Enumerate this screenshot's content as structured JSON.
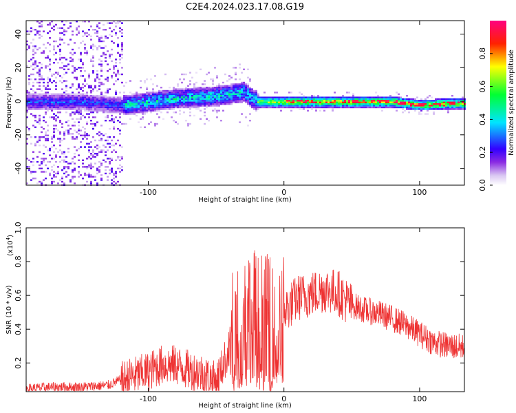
{
  "title": "C2E4.2024.023.17.08.G19",
  "chart_data": [
    {
      "type": "heatmap",
      "xlabel": "Height of straight line (km)",
      "ylabel": "Frequency (Hz)",
      "xlim": [
        -190,
        133
      ],
      "ylim": [
        -50,
        48
      ],
      "xticks": [
        -100,
        0,
        100
      ],
      "yticks": [
        -40,
        -20,
        0,
        20,
        40
      ],
      "colorbar": {
        "label": "Normalized spectral amplitude",
        "range": [
          0,
          1
        ],
        "ticks": [
          0.0,
          0.2,
          0.4,
          0.6,
          0.8
        ],
        "tick_labels": [
          "0.0",
          "0.2",
          "0.4",
          "0.6",
          "0.8"
        ],
        "colormap": [
          "#ffffff",
          "#d9c6f2",
          "#8a2be2",
          "#3300ff",
          "#00e5ff",
          "#00ff33",
          "#ffff00",
          "#ff2200",
          "#ff0080"
        ]
      },
      "ridge": {
        "description_points_x": [
          -190,
          -150,
          -120,
          -100,
          -80,
          -60,
          -45,
          -30,
          -20,
          -10,
          0,
          20,
          40,
          60,
          80,
          100,
          120,
          133
        ],
        "center_freq": [
          0,
          0,
          -2,
          0,
          2,
          3,
          4,
          6,
          0,
          0,
          0,
          0,
          0,
          0,
          0,
          -2,
          -1,
          -1
        ]
      }
    },
    {
      "type": "line",
      "xlabel": "Height of straight line (km)",
      "ylabel": "SNR (10 * v/v)",
      "y_multiplier_label": "(x10",
      "y_multiplier_exp": "4",
      "y_multiplier_close": ")",
      "xlim": [
        -190,
        133
      ],
      "ylim": [
        0.03,
        1.0
      ],
      "xticks": [
        -100,
        0,
        100
      ],
      "yticks": [
        0.2,
        0.4,
        0.6,
        0.8,
        1.0
      ],
      "color": "#ee3333",
      "series": [
        {
          "x": [
            -190,
            -170,
            -150,
            -130,
            -115,
            -100,
            -90,
            -80,
            -70,
            -60,
            -50,
            -40,
            -35,
            -30,
            -25,
            -20,
            -15,
            -10,
            -5,
            0,
            10,
            20,
            30,
            40,
            50,
            60,
            70,
            80,
            90,
            100,
            110,
            120,
            133
          ],
          "y": [
            0.05,
            0.06,
            0.06,
            0.07,
            0.12,
            0.16,
            0.2,
            0.2,
            0.17,
            0.15,
            0.1,
            0.3,
            0.45,
            0.5,
            0.55,
            0.5,
            0.5,
            0.45,
            0.4,
            0.52,
            0.6,
            0.62,
            0.65,
            0.63,
            0.55,
            0.52,
            0.5,
            0.47,
            0.43,
            0.38,
            0.33,
            0.31,
            0.3
          ]
        }
      ]
    }
  ]
}
